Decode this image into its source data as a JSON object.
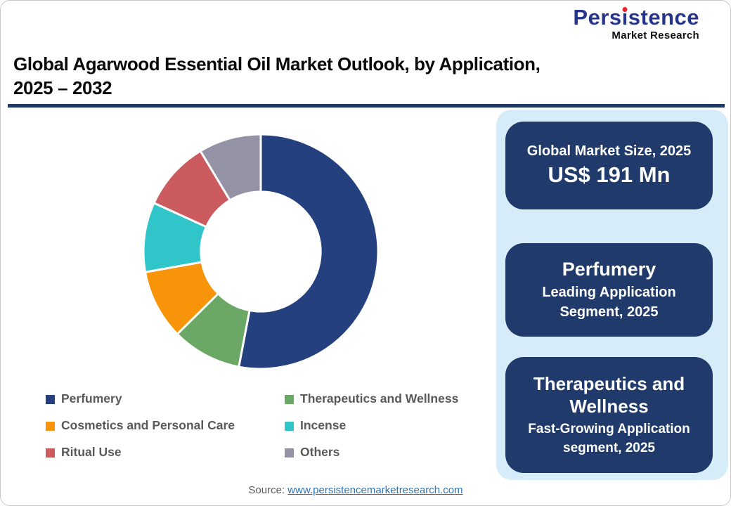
{
  "brand": {
    "word": "Persistence",
    "word_pre": "Pers",
    "word_i": "ı",
    "word_post": "stence",
    "subtitle": "Market Research"
  },
  "header": {
    "title_line1": "Global Agarwood Essential Oil Market Outlook, by Application,",
    "title_line2": "2025 – 2032"
  },
  "chart_data": {
    "type": "pie",
    "donut": true,
    "title": "Global Agarwood Essential Oil Market Outlook, by Application, 2025 – 2032",
    "start_angle_deg": 0,
    "clockwise": true,
    "inner_radius_ratio": 0.51,
    "categories": [
      "Perfumery",
      "Therapeutics and Wellness",
      "Cosmetics and Personal Care",
      "Incense",
      "Ritual Use",
      "Others"
    ],
    "values_pct": [
      53.0,
      9.6,
      9.6,
      9.6,
      9.6,
      8.6
    ],
    "colors": [
      "#24407E",
      "#6CA865",
      "#F7940A",
      "#30C5C8",
      "#CC5B60",
      "#9492A5"
    ],
    "legend_position": "bottom-left, two columns, row-major order"
  },
  "sidebar": {
    "boxes": [
      {
        "label": "Global Market Size, 2025",
        "value": "US$ 191 Mn"
      },
      {
        "title": "Perfumery",
        "subtitle": "Leading Application Segment, 2025"
      },
      {
        "title": "Therapeutics and Wellness",
        "subtitle": "Fast-Growing Application segment, 2025"
      }
    ]
  },
  "footer": {
    "source_label": "Source:",
    "source_link": "www.persistencemarketresearch.com"
  },
  "theme": {
    "navy": "#1F3A6B",
    "panel_blue": "#D7ECF9",
    "divider": "#203864",
    "logo_blue": "#26348B",
    "logo_red": "#E8252A",
    "text_gray": "#595959",
    "link_blue": "#2E75B6",
    "title_black": "#0A0A0A",
    "border_gray": "#C8C8C8"
  }
}
